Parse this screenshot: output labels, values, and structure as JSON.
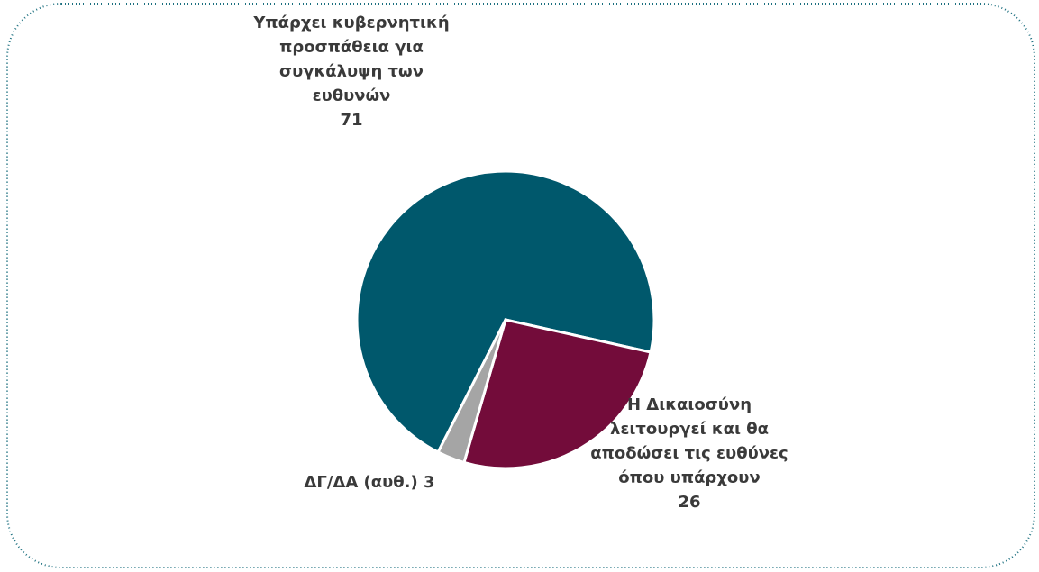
{
  "chart_data": {
    "type": "pie",
    "categories": [
      "Υπάρχει κυβερνητική προσπάθεια για συγκάλυψη των ευθυνών",
      "Η Δικαιοσύνη λειτουργεί και θα αποδώσει τις ευθύνες όπου υπάρχουν",
      "ΔΓ/ΔΑ (αυθ.)"
    ],
    "values": [
      71,
      26,
      3
    ],
    "colors": [
      "#00586c",
      "#730c3a",
      "#a5a5a5"
    ]
  }
}
